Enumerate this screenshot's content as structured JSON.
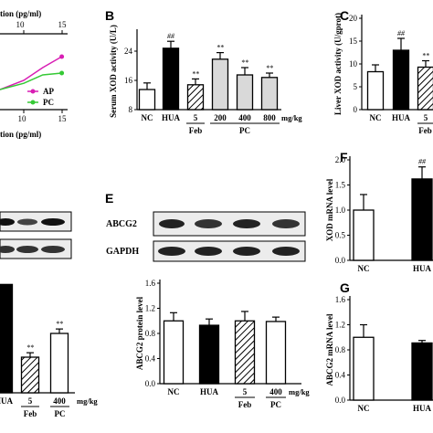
{
  "panel_letters": {
    "B": "B",
    "C": "C",
    "E": "E",
    "F": "F",
    "G": "G"
  },
  "colors": {
    "axis": "#000000",
    "pink": "#d81eb4",
    "green": "#35c935",
    "gray_bar": "#d9d9d9",
    "black_bar": "#000000",
    "white_bar": "#ffffff"
  },
  "icons": [
    "hatched-bar-pattern"
  ],
  "chart_data": [
    {
      "id": "A",
      "type": "line",
      "xlabel_partial": "tion (pg/ml)",
      "top_axis_label_partial": "tion (pg/ml)",
      "top_ticks": [
        "10",
        "15"
      ],
      "bottom_ticks": [
        "10",
        "15"
      ],
      "legend": [
        "AP",
        "PC"
      ],
      "series": [
        {
          "name": "AP",
          "x": [
            0,
            5,
            9,
            13
          ],
          "y": [
            0.55,
            0.8,
            1.15,
            1.45
          ]
        },
        {
          "name": "PC",
          "x": [
            0,
            5,
            9,
            13
          ],
          "y": [
            0.55,
            0.72,
            0.95,
            1.0
          ]
        }
      ]
    },
    {
      "id": "B",
      "type": "bar",
      "ylabel": "Serum XOD activity (U/L)",
      "ylim": [
        8,
        29
      ],
      "yticks": [
        "8",
        "16",
        "24"
      ],
      "categories": [
        "NC",
        "HUA",
        "5",
        "200",
        "400",
        "800"
      ],
      "group_labels": [
        "Feb",
        "PC"
      ],
      "unit": "mg/kg",
      "values": [
        13.5,
        24.8,
        14.8,
        21.8,
        17.5,
        16.8
      ],
      "errors": [
        1.8,
        1.9,
        1.6,
        1.8,
        2.0,
        1.2
      ],
      "annotations": [
        "",
        "##",
        "**",
        "**",
        "**",
        "**"
      ],
      "styles": [
        "white",
        "black",
        "hatch",
        "gray",
        "gray",
        "gray"
      ]
    },
    {
      "id": "C",
      "type": "bar",
      "ylabel": "Liver XOD activity (U/gprot)",
      "ylim": [
        0,
        20
      ],
      "yticks": [
        "0",
        "5",
        "10",
        "15",
        "20"
      ],
      "categories": [
        "NC",
        "HUA",
        "5"
      ],
      "group_labels": [
        "Feb"
      ],
      "values": [
        8.3,
        13.0,
        9.3
      ],
      "errors": [
        1.5,
        2.6,
        1.4
      ],
      "annotations": [
        "",
        "##",
        "**"
      ],
      "styles": [
        "white",
        "black",
        "hatch"
      ]
    },
    {
      "id": "D",
      "type": "bar",
      "categories": [
        "HUA",
        "5",
        "400"
      ],
      "group_labels": [
        "Feb",
        "PC"
      ],
      "unit": "mg/kg",
      "values": [
        1.33,
        0.84,
        1.0
      ],
      "errors": [
        0.0,
        0.03,
        0.03
      ],
      "annotations": [
        "",
        "**",
        "**"
      ],
      "styles": [
        "black",
        "hatch",
        "white"
      ],
      "ylim": [
        0.6,
        1.4
      ]
    },
    {
      "id": "E",
      "type": "bar",
      "blot_labels": [
        "ABCG2",
        "GAPDH"
      ],
      "ylabel": "ABCG2 protein level",
      "ylim": [
        0.0,
        1.6
      ],
      "yticks": [
        "0.0",
        "0.4",
        "0.8",
        "1.2",
        "1.6"
      ],
      "categories": [
        "NC",
        "HUA",
        "5",
        "400"
      ],
      "group_labels": [
        "Feb",
        "PC"
      ],
      "unit": "mg/kg",
      "values": [
        1.0,
        0.93,
        1.0,
        0.99
      ],
      "errors": [
        0.13,
        0.1,
        0.15,
        0.07
      ],
      "styles": [
        "white",
        "black",
        "hatch",
        "white"
      ]
    },
    {
      "id": "F",
      "type": "bar",
      "ylabel": "XOD mRNA level",
      "ylim": [
        0.0,
        2.0
      ],
      "yticks": [
        "0.0",
        "0.5",
        "1.0",
        "1.5",
        "2.0"
      ],
      "categories": [
        "NC",
        "HUA"
      ],
      "values": [
        1.0,
        1.62
      ],
      "errors": [
        0.31,
        0.24
      ],
      "annotations": [
        "",
        "##"
      ],
      "styles": [
        "white",
        "black"
      ]
    },
    {
      "id": "G",
      "type": "bar",
      "ylabel": "ABCG2 mRNA level",
      "ylim": [
        0.0,
        1.6
      ],
      "yticks": [
        "0.0",
        "0.4",
        "0.8",
        "1.2",
        "1.6"
      ],
      "categories": [
        "NC",
        "HUA"
      ],
      "values": [
        1.0,
        0.91
      ],
      "errors": [
        0.2,
        0.04
      ],
      "styles": [
        "white",
        "black"
      ]
    }
  ]
}
